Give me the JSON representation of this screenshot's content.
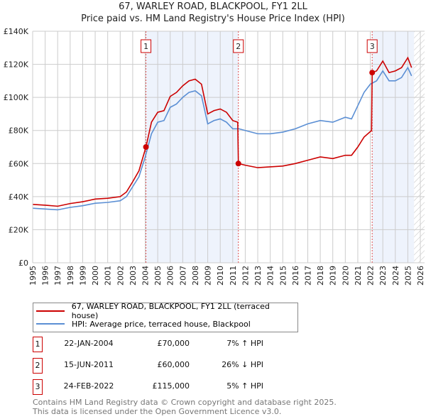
{
  "chart_data": {
    "type": "line",
    "title": "67, WARLEY ROAD, BLACKPOOL, FY1 2LL",
    "subtitle": "Price paid vs. HM Land Registry's House Price Index (HPI)",
    "xlim": [
      1995,
      2026
    ],
    "ylim": [
      0,
      140000
    ],
    "x_ticks": [
      "1995",
      "1996",
      "1997",
      "1998",
      "1999",
      "2000",
      "2001",
      "2002",
      "2003",
      "2004",
      "2005",
      "2006",
      "2007",
      "2008",
      "2009",
      "2010",
      "2011",
      "2012",
      "2013",
      "2014",
      "2015",
      "2016",
      "2017",
      "2018",
      "2019",
      "2020",
      "2021",
      "2022",
      "2023",
      "2024",
      "2025",
      "2026"
    ],
    "y_ticks": [
      {
        "v": 0,
        "label": "£0"
      },
      {
        "v": 20000,
        "label": "£20K"
      },
      {
        "v": 40000,
        "label": "£40K"
      },
      {
        "v": 60000,
        "label": "£60K"
      },
      {
        "v": 80000,
        "label": "£80K"
      },
      {
        "v": 100000,
        "label": "£100K"
      },
      {
        "v": 120000,
        "label": "£120K"
      },
      {
        "v": 140000,
        "label": "£140K"
      }
    ],
    "series": [
      {
        "name": "67, WARLEY ROAD, BLACKPOOL, FY1 2LL (terraced house)",
        "color": "#cc0000",
        "x": [
          1995,
          1996,
          1997,
          1998,
          1999,
          2000,
          2001,
          2002,
          2002.5,
          2003,
          2003.5,
          2004.06,
          2004.5,
          2005,
          2005.5,
          2006,
          2006.5,
          2007,
          2007.5,
          2008,
          2008.5,
          2009,
          2009.5,
          2010,
          2010.5,
          2011,
          2011.4,
          2011.45,
          2012,
          2013,
          2014,
          2015,
          2016,
          2017,
          2018,
          2019,
          2020,
          2020.5,
          2021,
          2021.5,
          2022.1,
          2022.15,
          2022.5,
          2023,
          2023.5,
          2024,
          2024.5,
          2025,
          2025.3
        ],
        "y": [
          35300,
          34800,
          34200,
          35800,
          36900,
          38500,
          39000,
          40000,
          42800,
          49000,
          55600,
          70000,
          85000,
          91000,
          92000,
          100600,
          103000,
          107000,
          110000,
          111000,
          108000,
          90000,
          92000,
          93000,
          91000,
          86000,
          85000,
          60000,
          59000,
          57500,
          58000,
          58500,
          60000,
          62000,
          64000,
          63000,
          65000,
          65000,
          70000,
          76000,
          80000,
          115000,
          116000,
          122000,
          115000,
          116000,
          118000,
          124000,
          118000
        ]
      },
      {
        "name": "HPI: Average price, terraced house, Blackpool",
        "color": "#5b8fd4",
        "x": [
          1995,
          1996,
          1997,
          1998,
          1999,
          2000,
          2001,
          2002,
          2002.5,
          2003,
          2003.5,
          2004,
          2004.5,
          2005,
          2005.5,
          2006,
          2006.5,
          2007,
          2007.5,
          2008,
          2008.5,
          2009,
          2009.5,
          2010,
          2010.5,
          2011,
          2011.5,
          2012,
          2013,
          2014,
          2015,
          2016,
          2017,
          2018,
          2019,
          2020,
          2020.5,
          2021,
          2021.5,
          2022,
          2022.5,
          2023,
          2023.5,
          2024,
          2024.5,
          2025,
          2025.3
        ],
        "y": [
          33000,
          32500,
          32000,
          33500,
          34500,
          36000,
          36500,
          37500,
          40000,
          46000,
          52000,
          64000,
          78000,
          85000,
          86000,
          94000,
          96000,
          100000,
          103000,
          104000,
          101000,
          84000,
          86000,
          87000,
          85000,
          81000,
          81000,
          80000,
          78000,
          78000,
          79000,
          81000,
          84000,
          86000,
          85000,
          88000,
          87000,
          95000,
          103000,
          108000,
          110000,
          116000,
          110000,
          110000,
          112000,
          118000,
          113000
        ]
      }
    ],
    "sales": [
      {
        "n": "1",
        "x": 2004.06,
        "y": 70000,
        "date": "22-JAN-2004",
        "price": "£70,000",
        "hpi": "7% ↑ HPI"
      },
      {
        "n": "2",
        "x": 2011.45,
        "y": 60000,
        "date": "15-JUN-2011",
        "price": "£60,000",
        "hpi": "26% ↓ HPI"
      },
      {
        "n": "3",
        "x": 2022.15,
        "y": 115000,
        "date": "24-FEB-2022",
        "price": "£115,000",
        "hpi": "5% ↑ HPI"
      }
    ],
    "shaded": [
      [
        2004.06,
        2011.45
      ],
      [
        2022.15,
        2026
      ]
    ],
    "hatched_from": 2025.5,
    "legend": "bottom"
  },
  "footer": [
    "Contains HM Land Registry data © Crown copyright and database right 2025.",
    "This data is licensed under the Open Government Licence v3.0."
  ]
}
